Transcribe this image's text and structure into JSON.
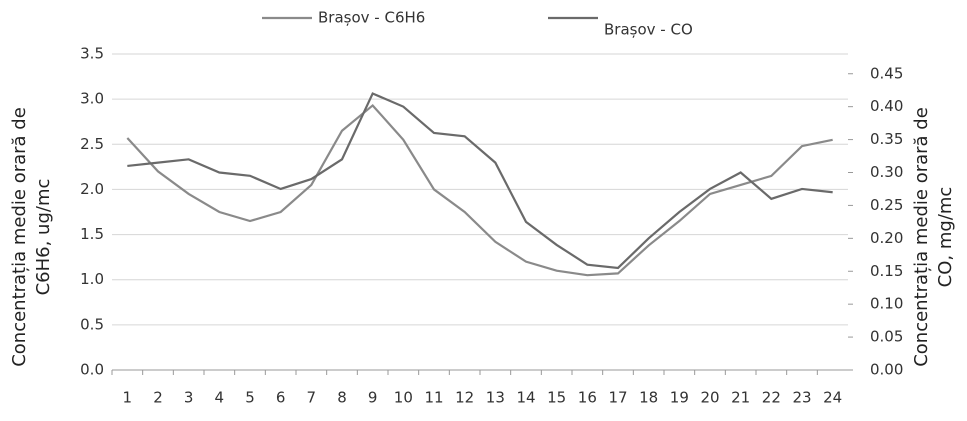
{
  "chart_data": {
    "type": "line",
    "ylabel": [
      "Concentrația medie orară de",
      "C6H6, ug/mc"
    ],
    "y2label": [
      "Concentrația medie orară de",
      "CO, mg/mc"
    ],
    "categories": [
      "1",
      "2",
      "3",
      "4",
      "5",
      "6",
      "7",
      "8",
      "9",
      "10",
      "11",
      "12",
      "13",
      "14",
      "15",
      "16",
      "17",
      "18",
      "19",
      "20",
      "21",
      "22",
      "23",
      "24"
    ],
    "series": [
      {
        "name": "Brașov - C6H6",
        "color": "#8a8a8a",
        "values": [
          2.57,
          2.2,
          1.95,
          1.75,
          1.65,
          1.75,
          2.05,
          2.65,
          2.93,
          2.55,
          2.0,
          1.75,
          1.42,
          1.2,
          1.1,
          1.05,
          1.07,
          1.38,
          1.65,
          1.95,
          2.05,
          2.15,
          2.48,
          2.55
        ]
      },
      {
        "name": "Brașov - CO",
        "color": "#6a6a6a",
        "axis": "y2",
        "values": [
          0.31,
          0.315,
          0.32,
          0.3,
          0.295,
          0.275,
          0.29,
          0.32,
          0.42,
          0.4,
          0.36,
          0.355,
          0.315,
          0.225,
          0.19,
          0.16,
          0.155,
          0.2,
          0.24,
          0.275,
          0.3,
          0.26,
          0.275,
          0.27
        ]
      }
    ],
    "ylim": [
      0,
      3.5
    ],
    "yticks": [
      {
        "value": 0,
        "label": "0.0"
      },
      0.5,
      {
        "value": 1,
        "label": "1.0"
      },
      1.5,
      {
        "value": 2,
        "label": "2.0"
      },
      2.5,
      {
        "value": 3,
        "label": "3.0"
      },
      3.5
    ],
    "y2lim": [
      0,
      0.48
    ],
    "y2ticks": [
      {
        "value": 0,
        "label": "0.00"
      },
      0.05,
      {
        "value": 0.1,
        "label": "0.10"
      },
      0.15,
      {
        "value": 0.2,
        "label": "0.20"
      },
      0.25,
      {
        "value": 0.3,
        "label": "0.30"
      },
      0.35,
      {
        "value": 0.4,
        "label": "0.40"
      },
      0.45
    ],
    "grid": true
  }
}
